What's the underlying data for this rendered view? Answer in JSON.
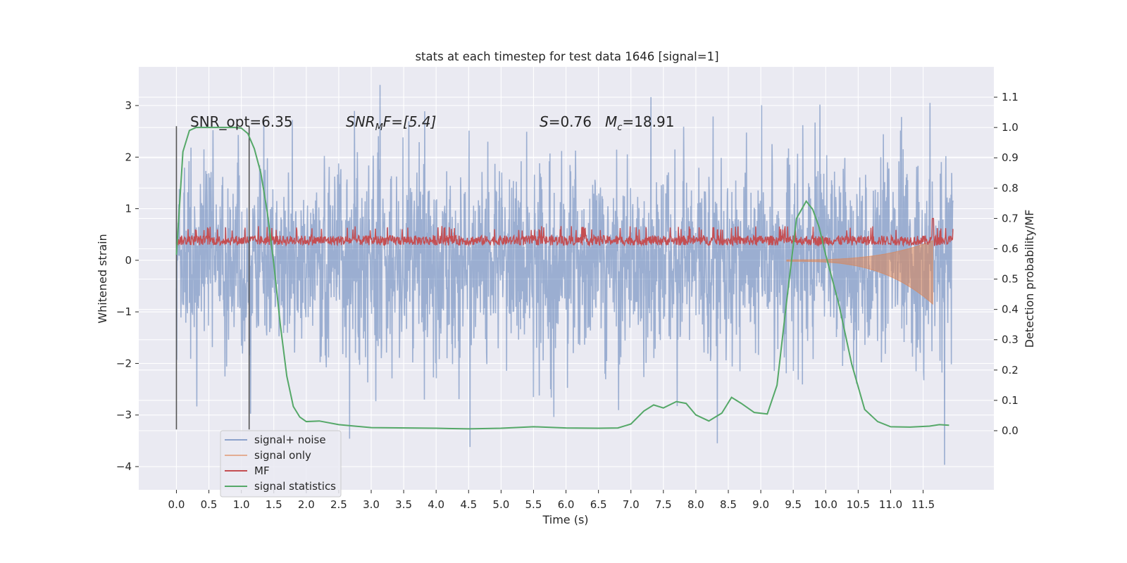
{
  "chart_data": {
    "type": "line",
    "title": "stats at each timestep for test data 1646 [signal=1]",
    "xlabel": "Time (s)",
    "ylabel_left": "Whitened strain",
    "ylabel_right": "Detection probability/MF",
    "xlim": [
      -0.58,
      12.59
    ],
    "ylim_left": [
      -4.45,
      3.75
    ],
    "ylim_right": [
      -0.195,
      1.2
    ],
    "x_ticks": [
      "0.0",
      "0.5",
      "1.0",
      "1.5",
      "2.0",
      "2.5",
      "3.0",
      "3.5",
      "4.0",
      "4.5",
      "5.0",
      "5.5",
      "6.0",
      "6.5",
      "7.0",
      "7.5",
      "8.0",
      "8.5",
      "9.0",
      "9.5",
      "10.0",
      "10.5",
      "11.0",
      "11.5"
    ],
    "y_ticks_left": [
      "3",
      "2",
      "1",
      "0",
      "−1",
      "−2",
      "−3",
      "−4"
    ],
    "y_ticks_right": [
      "1.1",
      "1.0",
      "0.9",
      "0.8",
      "0.7",
      "0.6",
      "0.5",
      "0.4",
      "0.3",
      "0.2",
      "0.1",
      "0.0"
    ],
    "grid": true,
    "legend_position": "lower left",
    "colors": {
      "background": "#eaeaf2",
      "grid": "#ffffff",
      "noise": "#4c72b0",
      "signal": "#dd8452",
      "mf": "#c44e52",
      "stats": "#55a868",
      "window": "#555555"
    },
    "annotations": {
      "snr_opt": "SNR_opt=6.35",
      "snr_mf_prefix": "SNR",
      "snr_mf_sub": "M",
      "snr_mf_suffix": "F=[5.4]",
      "s_label": "S",
      "s_value": "=0.76",
      "mc_label": "M",
      "mc_sub": "c",
      "mc_value": "=18.91"
    },
    "series": [
      {
        "name": "signal+ noise",
        "axis": "left",
        "description_envelope": {
          "x": [
            0.0,
            11.96
          ],
          "upper_typical": 1.8,
          "lower_typical": -1.8,
          "max": 3.4,
          "min": -4.1
        }
      },
      {
        "name": "signal only",
        "axis": "left",
        "chirp": {
          "x_start": 9.4,
          "x_end": 11.65,
          "amp_start": 0.02,
          "amp_end": 0.85
        }
      },
      {
        "name": "MF",
        "axis": "right",
        "band": {
          "x": [
            0.0,
            11.96
          ],
          "low": 0.595,
          "high": 0.66,
          "spike_x": 11.65,
          "spike_y": 0.7
        }
      },
      {
        "name": "signal statistics",
        "axis": "right",
        "x": [
          0.0,
          0.1,
          0.2,
          0.3,
          0.5,
          0.7,
          0.9,
          1.0,
          1.1,
          1.2,
          1.3,
          1.4,
          1.5,
          1.6,
          1.7,
          1.8,
          1.9,
          2.0,
          2.2,
          2.5,
          3.0,
          4.0,
          4.5,
          5.0,
          5.5,
          6.0,
          6.5,
          6.8,
          7.0,
          7.2,
          7.35,
          7.5,
          7.7,
          7.85,
          8.0,
          8.2,
          8.4,
          8.55,
          8.7,
          8.9,
          9.1,
          9.25,
          9.4,
          9.55,
          9.7,
          9.8,
          9.9,
          10.0,
          10.2,
          10.4,
          10.6,
          10.8,
          11.0,
          11.3,
          11.6,
          11.75,
          11.9
        ],
        "values": [
          0.58,
          0.92,
          0.99,
          1.0,
          1.0,
          1.0,
          1.0,
          0.998,
          0.98,
          0.93,
          0.85,
          0.72,
          0.55,
          0.35,
          0.18,
          0.08,
          0.045,
          0.03,
          0.032,
          0.02,
          0.01,
          0.008,
          0.006,
          0.008,
          0.013,
          0.009,
          0.008,
          0.009,
          0.022,
          0.065,
          0.085,
          0.075,
          0.096,
          0.09,
          0.052,
          0.032,
          0.058,
          0.11,
          0.09,
          0.06,
          0.055,
          0.15,
          0.43,
          0.7,
          0.757,
          0.73,
          0.67,
          0.58,
          0.42,
          0.22,
          0.07,
          0.03,
          0.013,
          0.012,
          0.015,
          0.02,
          0.018
        ]
      }
    ],
    "window_markers": {
      "x": [
        0.0,
        1.12
      ],
      "y_top": 2.6,
      "y_bottom": -3.28
    }
  }
}
